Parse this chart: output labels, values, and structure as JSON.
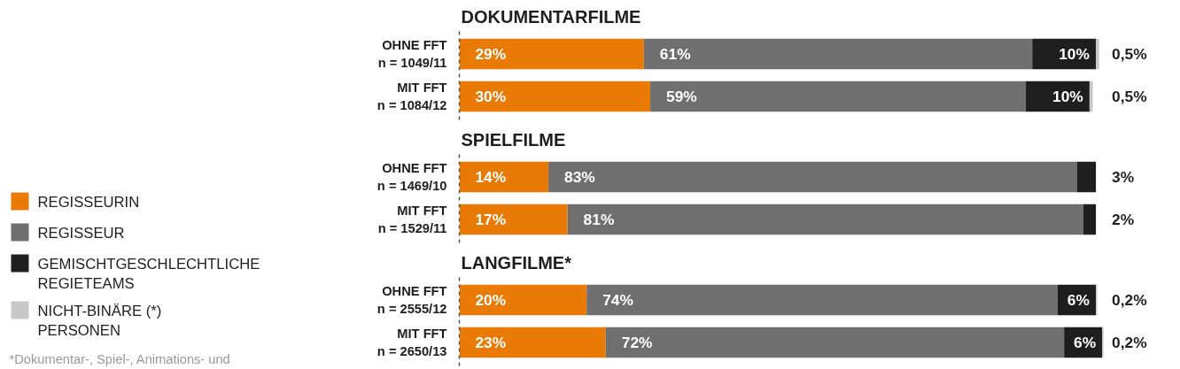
{
  "chart_data": [
    {
      "type": "bar",
      "orientation": "horizontal",
      "stacked": true,
      "title": "DOKUMENTARFILME",
      "categories": [
        "OHNE FFT\nn = 1049/11",
        "MIT FFT\nn = 1084/12"
      ],
      "tick_labels": "y",
      "legend": "left",
      "grid": false,
      "series": [
        {
          "name": "REGISSEURIN",
          "color": "#e97a06",
          "values": [
            29,
            30
          ],
          "value_labels": [
            "29%",
            "30%"
          ]
        },
        {
          "name": "REGISSEUR",
          "color": "#6f6f6f",
          "values": [
            61,
            59
          ],
          "value_labels": [
            "61%",
            "59%"
          ]
        },
        {
          "name": "GEMISCHTGESCHLECHTLICHE\nREGIETEAMS",
          "color": "#1e1e1e",
          "values": [
            10,
            10
          ],
          "value_labels": [
            "10%",
            "10%"
          ]
        },
        {
          "name": "NICHT-BINÄRE (*)\nPERSONEN",
          "color": "#c8c8c8",
          "values": [
            0.5,
            0.5
          ],
          "value_labels": [
            "0,5%",
            "0,5%"
          ]
        }
      ]
    },
    {
      "type": "bar",
      "orientation": "horizontal",
      "stacked": true,
      "title": "SPIELFILME",
      "categories": [
        "OHNE FFT\nn = 1469/10",
        "MIT FFT\nn = 1529/11"
      ],
      "tick_labels": "y",
      "grid": false,
      "series": [
        {
          "color": "#e97a06",
          "values": [
            14,
            17
          ],
          "value_labels": [
            "14%",
            "17%"
          ]
        },
        {
          "color": "#6f6f6f",
          "values": [
            83,
            81
          ],
          "value_labels": [
            "83%",
            "81%"
          ]
        },
        {
          "color": "#1e1e1e",
          "values": [
            3,
            2
          ],
          "value_labels": [
            "3%",
            "2%"
          ]
        }
      ]
    },
    {
      "type": "bar",
      "orientation": "horizontal",
      "stacked": true,
      "title": "LANGFILME*",
      "categories": [
        "OHNE FFT\nn = 2555/12",
        "MIT FFT\nn = 2650/13"
      ],
      "tick_labels": "y",
      "grid": false,
      "annotations": [
        "*Dokumentar-, Spiel-, Animations- und"
      ],
      "series": [
        {
          "color": "#e97a06",
          "values": [
            20,
            23
          ],
          "value_labels": [
            "20%",
            "23%"
          ]
        },
        {
          "color": "#6f6f6f",
          "values": [
            74,
            72
          ],
          "value_labels": [
            "74%",
            "72%"
          ]
        },
        {
          "color": "#1e1e1e",
          "values": [
            6,
            6
          ],
          "value_labels": [
            "6%",
            "6%"
          ]
        },
        {
          "color": "#c8c8c8",
          "values": [
            0.2,
            0.2
          ],
          "value_labels": [
            "0,2%",
            "0,2%"
          ]
        }
      ]
    }
  ]
}
